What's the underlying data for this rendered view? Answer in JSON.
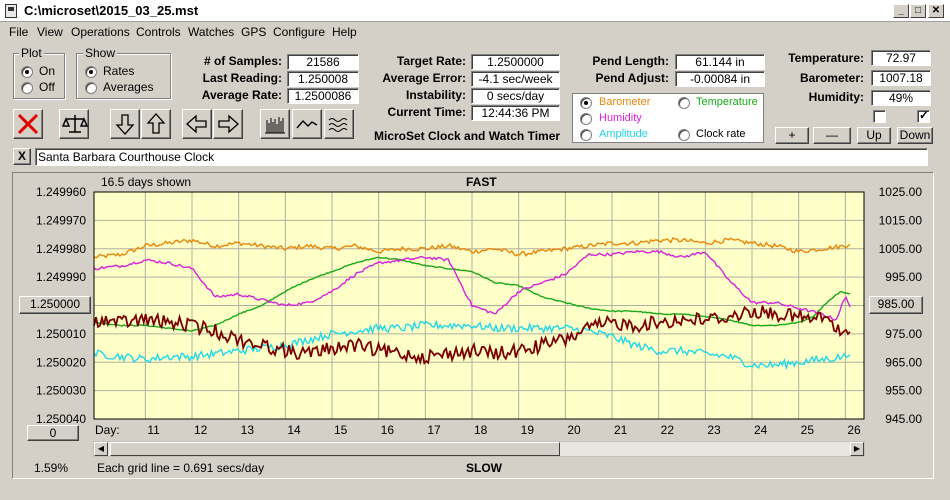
{
  "window": {
    "title": "C:\\microset\\2015_03_25.mst"
  },
  "menu": [
    "File",
    "View",
    "Operations",
    "Controls",
    "Watches",
    "GPS",
    "Configure",
    "Help"
  ],
  "plot_group": {
    "title": "Plot",
    "on": "On",
    "off": "Off",
    "selected": "On"
  },
  "show_group": {
    "title": "Show",
    "rates": "Rates",
    "averages": "Averages",
    "selected": "Rates"
  },
  "stats": {
    "samples_label": "# of Samples:",
    "samples": "21586",
    "last_reading_label": "Last Reading:",
    "last_reading": "1.250008",
    "average_rate_label": "Average Rate:",
    "average_rate": "1.2500086",
    "target_rate_label": "Target Rate:",
    "target_rate": "1.2500000",
    "average_error_label": "Average Error:",
    "average_error": "-4.1 sec/week",
    "instability_label": "Instability:",
    "instability": "0 secs/day",
    "current_time_label": "Current Time:",
    "current_time": "12:44:36 PM",
    "pend_length_label": "Pend Length:",
    "pend_length": "61.144 in",
    "pend_adjust_label": "Pend Adjust:",
    "pend_adjust": "-0.00084 in",
    "temperature_label": "Temperature:",
    "temperature": "72.97",
    "barometer_label": "Barometer:",
    "barometer": "1007.18",
    "humidity_label": "Humidity:",
    "humidity": "49%"
  },
  "subtitle": "MicroSet Clock and Watch Timer",
  "sensor_options": {
    "barometer": "Barometer",
    "temperature": "Temperature",
    "humidity": "Humidity",
    "amplitude": "Amplitude",
    "clock_rate": "Clock rate",
    "selected": "Barometer",
    "colors": {
      "barometer": "#e8860a",
      "temperature": "#18a818",
      "humidity": "#d820d8",
      "amplitude": "#20d8e8",
      "clock_rate": "#7a0000"
    }
  },
  "scale_buttons": {
    "plus": "+",
    "minus": "—",
    "up": "Up",
    "down": "Down"
  },
  "checkboxes": {
    "left_checked": false,
    "right_checked": true
  },
  "clock_name": "Santa Barbara Courthouse Clock",
  "close_label": "X",
  "chart_header": {
    "days_shown": "16.5 days shown",
    "fast": "FAST",
    "slow": "SLOW"
  },
  "chart_footer": {
    "percent": "1.59%",
    "grid_note": "Each grid line = 0.691 secs/day",
    "zero_button": "0",
    "day_label": "Day:"
  },
  "left_axis_center_button": "1.250000",
  "right_axis_center_button": "985.00",
  "colors": {
    "plot_bg": "#ffffc8",
    "grid": "#b0b0a0"
  },
  "chart_data": {
    "type": "line",
    "x_label": "Day:",
    "x_ticks": [
      "11",
      "12",
      "13",
      "14",
      "15",
      "16",
      "17",
      "18",
      "19",
      "20",
      "21",
      "22",
      "23",
      "24",
      "25",
      "26"
    ],
    "xlim": [
      9.9,
      26.4
    ],
    "y_left_ticks": [
      "1.249960",
      "1.249970",
      "1.249980",
      "1.249990",
      "1.250000",
      "1.250010",
      "1.250020",
      "1.250030",
      "1.250040"
    ],
    "ylim_left": [
      1.24996,
      1.25004
    ],
    "y_right_ticks": [
      "1025.00",
      "1015.00",
      "1005.00",
      "995.00",
      "985.00",
      "975.00",
      "965.00",
      "955.00",
      "945.00"
    ],
    "ylim_right": [
      945,
      1025
    ],
    "series": [
      {
        "name": "Barometer",
        "color": "#e8860a",
        "axis": "right",
        "noise": 0.8,
        "x": [
          9.9,
          10.5,
          11.0,
          11.5,
          12.0,
          12.5,
          13.0,
          13.5,
          14.0,
          14.5,
          15.0,
          15.5,
          16.0,
          16.5,
          17.0,
          17.5,
          18.0,
          18.5,
          19.0,
          19.5,
          20.0,
          20.5,
          21.0,
          21.5,
          22.0,
          22.5,
          23.0,
          23.5,
          24.0,
          24.5,
          25.0,
          25.5,
          26.0,
          26.1
        ],
        "y": [
          1002,
          1003,
          1006,
          1007,
          1008,
          1006,
          1007,
          1006,
          1005,
          1006,
          1005,
          1006,
          1004,
          1005,
          1005,
          1006,
          1004,
          1005,
          1003,
          1004,
          1005,
          1006,
          1007,
          1007,
          1008,
          1008,
          1007,
          1008,
          1007,
          1006,
          1004,
          1005,
          1006,
          1007
        ]
      },
      {
        "name": "Temperature",
        "color": "#18a818",
        "axis": "right",
        "noise": 0.2,
        "x": [
          9.9,
          10.5,
          11.0,
          11.5,
          12.0,
          12.5,
          13.0,
          13.5,
          14.0,
          14.5,
          15.0,
          15.5,
          16.0,
          16.5,
          17.0,
          17.5,
          18.0,
          18.5,
          19.0,
          19.5,
          20.0,
          20.5,
          21.0,
          21.5,
          22.0,
          22.5,
          23.0,
          23.5,
          24.0,
          24.5,
          25.0,
          25.3,
          25.6,
          25.9,
          26.1
        ],
        "y": [
          979,
          978,
          978,
          977,
          976,
          978,
          982,
          985,
          990,
          994,
          997,
          1000,
          1002,
          1001,
          999,
          998,
          997,
          993,
          992,
          988,
          986,
          984,
          983,
          983,
          982,
          982,
          981,
          980,
          978,
          978,
          979,
          981,
          986,
          990,
          989
        ]
      },
      {
        "name": "Humidity",
        "color": "#d820d8",
        "axis": "right",
        "noise": 0.5,
        "x": [
          9.9,
          10.5,
          11.0,
          11.5,
          12.0,
          12.3,
          12.5,
          13.0,
          13.5,
          14.0,
          14.5,
          15.0,
          15.5,
          16.0,
          16.5,
          17.0,
          17.5,
          18.0,
          18.5,
          19.0,
          19.5,
          20.0,
          20.5,
          21.0,
          21.5,
          22.0,
          22.5,
          23.0,
          23.5,
          24.0,
          24.5,
          25.0,
          25.5,
          25.8,
          26.0,
          26.1
        ],
        "y": [
          998,
          999,
          1001,
          1000,
          998,
          992,
          988,
          989,
          987,
          985,
          986,
          990,
          996,
          1000,
          1001,
          1002,
          1001,
          985,
          982,
          990,
          993,
          996,
          1003,
          1003,
          1004,
          1004,
          1002,
          1004,
          994,
          986,
          986,
          984,
          982,
          980,
          988,
          985
        ]
      },
      {
        "name": "Amplitude",
        "color": "#20d8e8",
        "axis": "right",
        "noise": 1.4,
        "x": [
          9.9,
          10.5,
          11.0,
          11.5,
          12.0,
          12.5,
          13.0,
          13.5,
          14.0,
          14.5,
          15.0,
          15.5,
          16.0,
          16.5,
          17.0,
          17.5,
          18.0,
          18.5,
          19.0,
          19.5,
          20.0,
          20.5,
          21.0,
          21.5,
          22.0,
          22.5,
          23.0,
          23.5,
          24.0,
          24.5,
          25.0,
          25.5,
          26.0,
          26.1
        ],
        "y": [
          968,
          967,
          966,
          967,
          967,
          968,
          969,
          970,
          971,
          973,
          975,
          976,
          977,
          977,
          978,
          978,
          978,
          977,
          977,
          977,
          977,
          976,
          974,
          971,
          969,
          969,
          968,
          967,
          964,
          964,
          965,
          966,
          967,
          969
        ]
      },
      {
        "name": "Clock rate",
        "color": "#7a0000",
        "axis": "left",
        "noise": 2.5e-06,
        "x": [
          9.9,
          10.5,
          11.0,
          11.5,
          12.0,
          12.5,
          13.0,
          13.5,
          14.0,
          14.5,
          15.0,
          15.5,
          16.0,
          16.5,
          17.0,
          17.5,
          18.0,
          18.5,
          19.0,
          19.5,
          20.0,
          20.5,
          21.0,
          21.5,
          22.0,
          22.5,
          23.0,
          23.5,
          24.0,
          24.5,
          25.0,
          25.3,
          25.6,
          25.9,
          26.1
        ],
        "y": [
          1.250005,
          1.250006,
          1.250005,
          1.250006,
          1.250007,
          1.250009,
          1.250012,
          1.250014,
          1.250016,
          1.250017,
          1.250015,
          1.250014,
          1.250016,
          1.250017,
          1.250018,
          1.250017,
          1.250016,
          1.250017,
          1.250016,
          1.250014,
          1.250012,
          1.250008,
          1.250006,
          1.250007,
          1.250006,
          1.250005,
          1.250005,
          1.250004,
          1.250002,
          1.250003,
          1.250004,
          1.250005,
          1.250004,
          1.25001,
          1.250011
        ]
      }
    ]
  }
}
